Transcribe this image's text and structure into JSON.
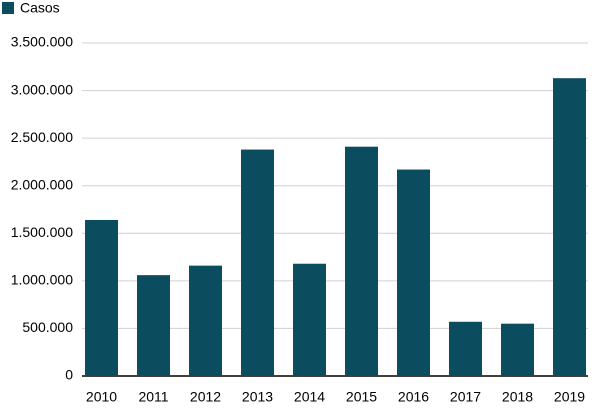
{
  "chart_data": {
    "type": "bar",
    "categories": [
      "2010",
      "2011",
      "2012",
      "2013",
      "2014",
      "2015",
      "2016",
      "2017",
      "2018",
      "2019"
    ],
    "series": [
      {
        "name": "Casos",
        "color": "#0b4c5f",
        "values": [
          1640000,
          1060000,
          1160000,
          2380000,
          1180000,
          2410000,
          2170000,
          570000,
          550000,
          3130000
        ]
      }
    ],
    "ylim": [
      0,
      3500000
    ],
    "yticks": [
      0,
      {
        "value": 500000,
        "label": "500.000"
      },
      {
        "value": 1000000,
        "label": "1.000.000"
      },
      {
        "value": 1500000,
        "label": "1.500.000"
      },
      {
        "value": 2000000,
        "label": "2.000.000"
      },
      {
        "value": 2500000,
        "label": "2.500.000"
      },
      {
        "value": 3000000,
        "label": "3.000.000"
      },
      {
        "value": 3500000,
        "label": "3.500.000"
      }
    ],
    "grid": true,
    "legend": "top-left"
  }
}
